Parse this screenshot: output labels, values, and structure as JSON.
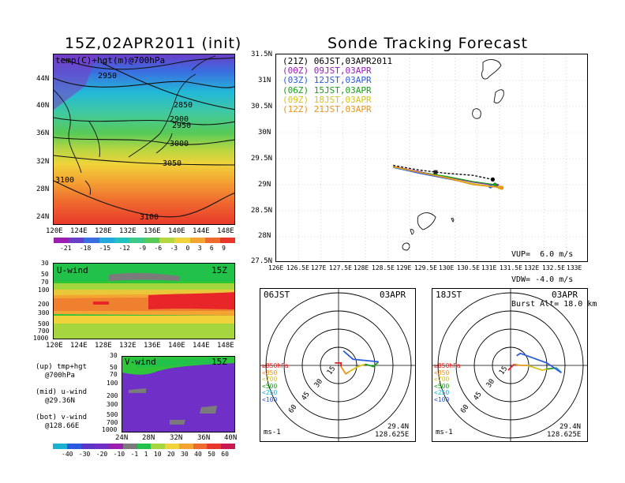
{
  "left": {
    "title": "15Z,02APR2011 (init)",
    "map_label": "temp(C)+hgt(m)@700hPa",
    "lat_ticks": [
      "44N",
      "40N",
      "36N",
      "32N",
      "28N",
      "24N"
    ],
    "lon_ticks": [
      "120E",
      "124E",
      "128E",
      "132E",
      "136E",
      "140E",
      "144E",
      "148E"
    ],
    "contours": [
      "2950",
      "2850",
      "2900",
      "2950",
      "3000",
      "3050",
      "3100",
      "3100"
    ],
    "temp_colorbar": [
      "-21",
      "-18",
      "-15",
      "-12",
      "-9",
      "-6",
      "-3",
      "0",
      "3",
      "6",
      "9"
    ],
    "uwind_label": "U-wind",
    "uwind_time": "15Z",
    "pres_ticks": [
      "30",
      "50",
      "70",
      "100",
      "200",
      "300",
      "500",
      "700",
      "1000"
    ],
    "vwind_label": "V-wind",
    "vwind_time": "15Z",
    "vlat_ticks": [
      "24N",
      "28N",
      "32N",
      "36N",
      "40N"
    ],
    "wind_colorbar": [
      "-40",
      "-30",
      "-20",
      "-10",
      "-1",
      "1",
      "10",
      "20",
      "30",
      "40",
      "50",
      "60"
    ],
    "notes": [
      {
        "a": "(up) tmp+hgt",
        "b": "@700hPa"
      },
      {
        "a": "(mid) u-wind",
        "b": "@29.36N"
      },
      {
        "a": "(bot) v-wind",
        "b": "@128.66E"
      }
    ]
  },
  "right": {
    "title": "Sonde Tracking Forecast",
    "legend": [
      {
        "text": "(21Z) 06JST,03APR2011",
        "color": "#000000"
      },
      {
        "text": "(00Z) 09JST,03APR",
        "color": "#9b1bbf"
      },
      {
        "text": "(03Z) 12JST,03APR",
        "color": "#2a5adf"
      },
      {
        "text": "(06Z) 15JST,03APR",
        "color": "#19a019"
      },
      {
        "text": "(09Z) 18JST,03APR",
        "color": "#d8c31a"
      },
      {
        "text": "(12Z) 21JST,03APR",
        "color": "#e8941a"
      }
    ],
    "lat_ticks": [
      "31.5N",
      "31N",
      "30.5N",
      "30N",
      "29.5N",
      "29N",
      "28.5N",
      "28N",
      "27.5N"
    ],
    "lon_ticks": [
      "126E",
      "126.5E",
      "127E",
      "127.5E",
      "128E",
      "128.5E",
      "129E",
      "129.5E",
      "130E",
      "130.5E",
      "131E",
      "131.5E",
      "132E",
      "132.5E",
      "133E"
    ],
    "params": {
      "vup": "VUP=  6.0 m/s",
      "vdw": "VDW= -4.0 m/s",
      "burst": "Burst Alt= 18.0 km"
    }
  },
  "hodo_left": {
    "time": "06JST",
    "date": "03APR",
    "lat": "29.4N",
    "lon": "128.625E",
    "units": "ms-1"
  },
  "hodo_right": {
    "time": "18JST",
    "date": "03APR",
    "lat": "29.4N",
    "lon": "128.625E",
    "units": "ms-1"
  },
  "hodo_rings": [
    "15",
    "30",
    "45",
    "60"
  ],
  "hodo_levels": [
    {
      "text": "≥850hPa",
      "color": "#e02020"
    },
    {
      "text": "<850",
      "color": "#e8941a"
    },
    {
      "text": "<700",
      "color": "#d8c31a"
    },
    {
      "text": "<500",
      "color": "#19a019"
    },
    {
      "text": "<250",
      "color": "#1ab0d0"
    },
    {
      "text": "<100",
      "color": "#2a5adf"
    }
  ],
  "chart_data": [
    {
      "type": "heatmap",
      "title": "15Z,02APR2011 (init)",
      "annotation": "temp(C)+hgt(m)@700hPa",
      "x_ticks": [
        "120E",
        "124E",
        "128E",
        "132E",
        "136E",
        "140E",
        "144E",
        "148E"
      ],
      "y_ticks": [
        "24N",
        "28N",
        "32N",
        "36N",
        "40N",
        "44N"
      ],
      "colorbar": [
        -21,
        -18,
        -15,
        -12,
        -9,
        -6,
        -3,
        0,
        3,
        6,
        9
      ],
      "contour_labels": [
        2850,
        2900,
        2950,
        3000,
        3050,
        3100
      ]
    },
    {
      "type": "heatmap",
      "annotation": "U-wind",
      "time": "15Z",
      "x_ticks": [
        "120E",
        "124E",
        "128E",
        "132E",
        "136E",
        "140E",
        "144E",
        "148E"
      ],
      "y_ticks": [
        30,
        50,
        70,
        100,
        200,
        300,
        500,
        700,
        1000
      ]
    },
    {
      "type": "heatmap",
      "annotation": "V-wind",
      "time": "15Z",
      "x_ticks": [
        "24N",
        "28N",
        "32N",
        "36N",
        "40N"
      ],
      "y_ticks": [
        30,
        50,
        70,
        100,
        200,
        300,
        500,
        700,
        1000
      ],
      "colorbar": [
        -40,
        -30,
        -20,
        -10,
        -1,
        1,
        10,
        20,
        30,
        40,
        50,
        60
      ]
    },
    {
      "type": "line",
      "title": "Sonde Tracking Forecast",
      "xlim": [
        126,
        133
      ],
      "ylim": [
        27.5,
        31.5
      ],
      "series": [
        {
          "name": "(21Z) 06JST,03APR2011",
          "x": [
            128.62,
            129.2,
            129.8,
            130.4,
            130.85
          ],
          "y": [
            29.37,
            29.28,
            29.22,
            29.18,
            29.1
          ]
        },
        {
          "name": "(00Z) 09JST,03APR",
          "x": [
            128.62,
            129.2,
            129.8,
            130.4,
            130.95
          ],
          "y": [
            29.35,
            29.25,
            29.15,
            29.05,
            28.98
          ]
        },
        {
          "name": "(03Z) 12JST,03APR",
          "x": [
            128.62,
            129.2,
            129.8,
            130.4,
            130.8
          ],
          "y": [
            29.33,
            29.22,
            29.12,
            29.02,
            28.97
          ]
        },
        {
          "name": "(06Z) 15JST,03APR",
          "x": [
            128.62,
            129.2,
            129.8,
            130.4,
            130.9
          ],
          "y": [
            29.34,
            29.24,
            29.16,
            29.06,
            29.0
          ]
        },
        {
          "name": "(09Z) 18JST,03APR",
          "x": [
            128.62,
            129.2,
            129.8,
            130.4,
            131.0
          ],
          "y": [
            29.34,
            29.24,
            29.14,
            29.02,
            28.95
          ]
        },
        {
          "name": "(12Z) 21JST,03APR",
          "x": [
            128.62,
            129.2,
            129.8,
            130.4,
            131.05
          ],
          "y": [
            29.35,
            29.24,
            29.13,
            29.0,
            28.94
          ]
        }
      ]
    },
    {
      "type": "scatter",
      "annotation": "06JST 03APR",
      "rings": [
        15,
        30,
        45,
        60
      ],
      "levels": [
        "≥850hPa",
        "<850",
        "<700",
        "<500",
        "<250",
        "<100"
      ],
      "segments": [
        {
          "level": "≥850hPa",
          "points": [
            [
              -3,
              2
            ],
            [
              2,
              2
            ],
            [
              2,
              -1
            ]
          ]
        },
        {
          "level": "<850",
          "points": [
            [
              2,
              -1
            ],
            [
              6,
              -7
            ],
            [
              9,
              -5
            ]
          ]
        },
        {
          "level": "<700",
          "points": [
            [
              9,
              -5
            ],
            [
              16,
              -1
            ],
            [
              22,
              1
            ]
          ]
        },
        {
          "level": "<500",
          "points": [
            [
              22,
              1
            ],
            [
              29,
              -1
            ],
            [
              33,
              3
            ]
          ]
        },
        {
          "level": "<100",
          "points": [
            [
              33,
              3
            ],
            [
              12,
              5
            ],
            [
              4,
              12
            ]
          ]
        }
      ]
    },
    {
      "type": "scatter",
      "annotation": "18JST 03APR",
      "rings": [
        15,
        30,
        45,
        60
      ],
      "levels": [
        "≥850hPa",
        "<850",
        "<700",
        "<500",
        "<250",
        "<100"
      ],
      "segments": [
        {
          "level": "≥850hPa",
          "points": [
            [
              -2,
              -4
            ],
            [
              2,
              0
            ],
            [
              3,
              1
            ]
          ]
        },
        {
          "level": "<850",
          "points": [
            [
              3,
              1
            ],
            [
              8,
              0
            ],
            [
              14,
              0
            ]
          ]
        },
        {
          "level": "<700",
          "points": [
            [
              14,
              0
            ],
            [
              26,
              -4
            ],
            [
              30,
              -3
            ]
          ]
        },
        {
          "level": "<500",
          "points": [
            [
              30,
              -3
            ],
            [
              38,
              -2
            ]
          ]
        },
        {
          "level": "<250",
          "points": [
            [
              38,
              -2
            ],
            [
              42,
              -6
            ]
          ]
        },
        {
          "level": "<100",
          "points": [
            [
              42,
              -6
            ],
            [
              30,
              2
            ],
            [
              8,
              10
            ],
            [
              5,
              8
            ]
          ]
        }
      ]
    }
  ]
}
